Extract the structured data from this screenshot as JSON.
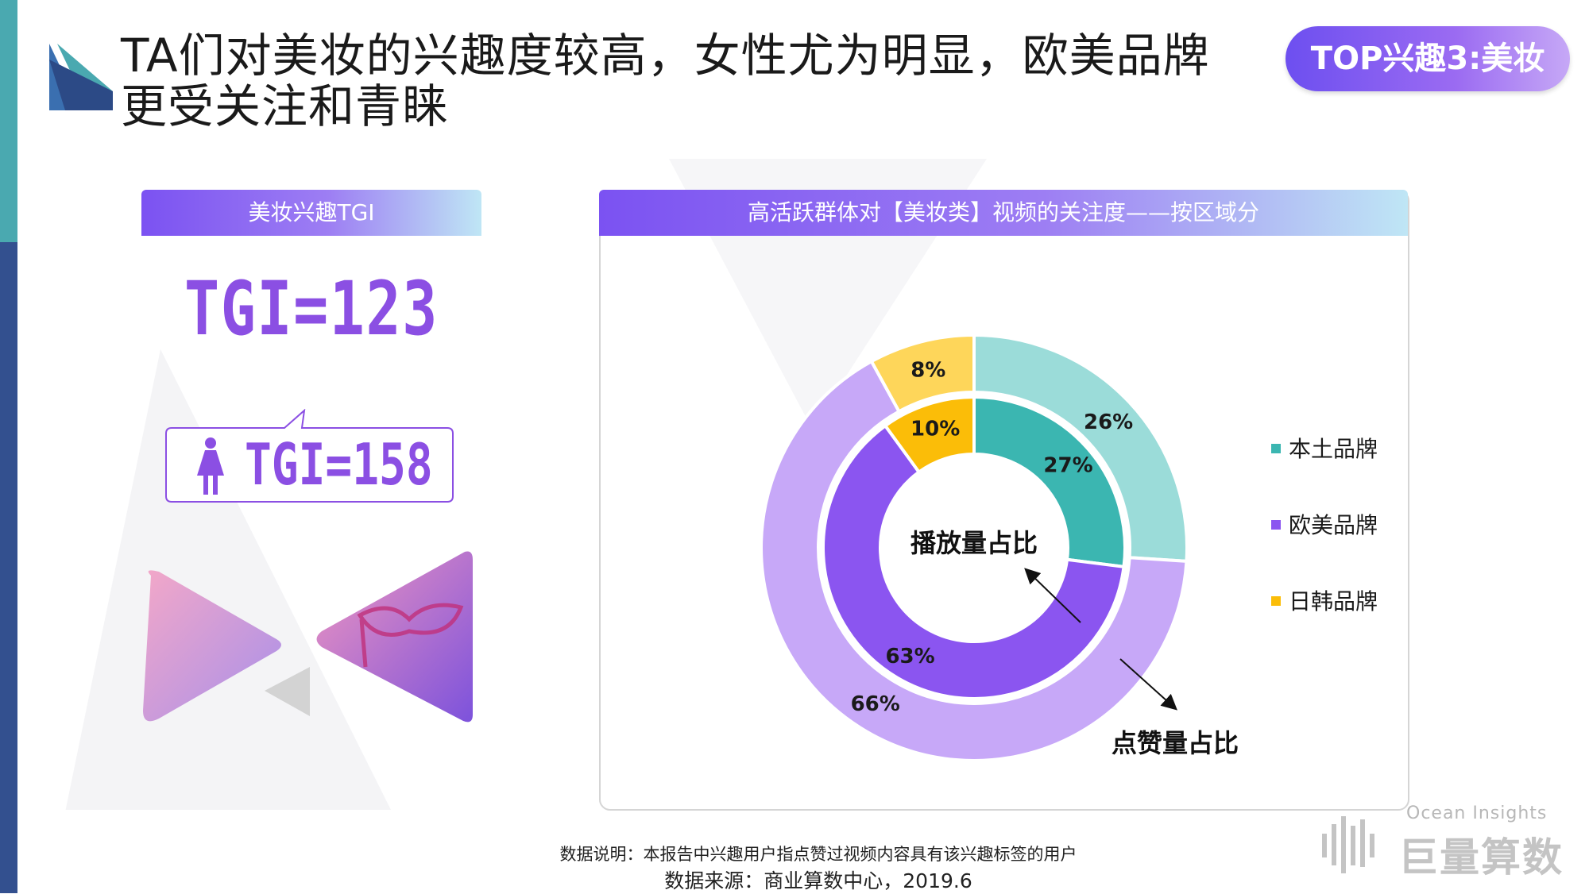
{
  "header": {
    "title_line1": "TA们对美妆的兴趣度较高，女性尤为明显，欧美品牌",
    "title_line2": "更受关注和青睐",
    "tag": "TOP兴趣3:美妆"
  },
  "left_panel": {
    "header": "美妆兴趣TGI",
    "tgi_overall": "TGI=123",
    "tgi_female": "TGI=158"
  },
  "right_panel": {
    "header": "高活跃群体对【美妆类】视频的关注度——按区域分"
  },
  "chart_data": {
    "type": "donut",
    "title": "",
    "inner_ring_label": "播放量占比",
    "outer_ring_label": "点赞量占比",
    "categories": [
      "本土品牌",
      "欧美品牌",
      "日韩品牌"
    ],
    "series": [
      {
        "name": "播放量占比",
        "values": [
          27,
          63,
          10
        ],
        "labels": [
          "27%",
          "63%",
          "10%"
        ]
      },
      {
        "name": "点赞量占比",
        "values": [
          26,
          66,
          8
        ],
        "labels": [
          "26%",
          "66%",
          "8%"
        ]
      }
    ],
    "legend": [
      "本土品牌",
      "欧美品牌",
      "日韩品牌"
    ],
    "legend_position": "right",
    "colors": {
      "inner": [
        "#3bb6b1",
        "#8b55f0",
        "#fbbd08"
      ],
      "outer": [
        "#9bdcd9",
        "#c7a8f8",
        "#fed65a"
      ],
      "legend": [
        "#3bb6b1",
        "#8b55f0",
        "#fbbd08"
      ]
    }
  },
  "footer": {
    "note": "数据说明：本报告中兴趣用户指点赞过视频内容具有该兴趣标签的用户",
    "source": "数据来源：商业算数中心，2019.6"
  },
  "brand": {
    "en": "Ocean Insights",
    "cn": "巨量算数"
  },
  "icons": {
    "logo": "triangle-logo-icon",
    "female": "female-icon",
    "mask": "mask-icon"
  }
}
